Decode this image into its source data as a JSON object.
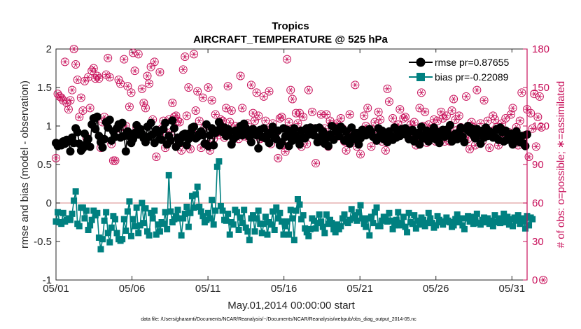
{
  "chart_data": {
    "type": "line",
    "title": "Tropics",
    "subtitle": "AIRCRAFT_TEMPERATURE @ 525 hPa",
    "xlabel": "May.01,2014 00:00:00 start",
    "ylabel_left": "rmse and bias (model - observation)",
    "ylabel_right": "# of obs: o=possible; ∗=assimilated",
    "x_ticks": [
      "05/01",
      "05/06",
      "05/11",
      "05/16",
      "05/21",
      "05/26",
      "05/31"
    ],
    "y_left_ticks": [
      "-1",
      "-0.5",
      "0",
      "0.5",
      "1",
      "1.5",
      "2"
    ],
    "y_right_ticks": [
      "0",
      "30",
      "60",
      "90",
      "120",
      "150",
      "180"
    ],
    "ylim_left": [
      -1,
      2
    ],
    "ylim_right": [
      0,
      180
    ],
    "xlim_days": [
      0,
      31
    ],
    "legend_position": "top-right",
    "footer": "data file: /Users/gharamti/Documents/NCAR/Reanalysis/~/Documents/NCAR/Reanalysis/webpub/obs_diag_output_2014-05.nc",
    "colors": {
      "rmse": "#000000",
      "bias": "#008080",
      "obs": "#c8105a",
      "zero_line": "#e0a0a0"
    },
    "series": [
      {
        "name": "rmse pr=0.87655",
        "axis": "left",
        "values": [
          0.78,
          0.74,
          0.77,
          0.75,
          0.8,
          0.77,
          0.82,
          0.8,
          0.67,
          0.85,
          0.78,
          0.97,
          0.92,
          0.77,
          0.68,
          0.71,
          0.9,
          0.76,
          0.83,
          0.73,
          1.02,
          1.1,
          0.96,
          1.12,
          0.87,
          0.79,
          0.72,
          0.83,
          1.05,
          0.98,
          1.08,
          0.81,
          0.93,
          0.86,
          0.97,
          1.02,
          0.85,
          1.04,
          0.87,
          0.67,
          0.93,
          0.87,
          0.78,
          0.83,
          0.91,
          1.01,
          0.89,
          0.96,
          0.9,
          0.84,
          0.79,
          0.99,
          0.86,
          1.04,
          0.89,
          0.78,
          0.95,
          0.91,
          0.83,
          0.82,
          0.96,
          1.04,
          0.76,
          0.87,
          0.81,
          1.07,
          0.97,
          0.73,
          0.85,
          0.78,
          0.84,
          0.89,
          0.9,
          0.75,
          0.83,
          0.91,
          0.98,
          0.99,
          0.84,
          0.86,
          0.9,
          0.93,
          0.88,
          0.77,
          1.02,
          0.74,
          0.88,
          0.97,
          0.75,
          0.91,
          0.94,
          1.05,
          1.0,
          0.92,
          0.98,
          0.87,
          0.96,
          0.92,
          0.76,
          0.83,
          0.94,
          0.87,
          0.93,
          1.0,
          0.88,
          1.03,
          0.97,
          0.92,
          0.86,
          0.79,
          0.96,
          0.93,
          0.88,
          0.71,
          0.95,
          0.86,
          0.97,
          0.84,
          0.88,
          0.78,
          0.92,
          0.99,
          0.85,
          0.83,
          0.94,
          0.75,
          0.79,
          0.97,
          0.86,
          0.95,
          0.74,
          0.89,
          0.81,
          0.97,
          0.88,
          0.83,
          0.76,
          0.94,
          0.85,
          0.84,
          0.97,
          0.89,
          0.98,
          0.92,
          0.88,
          0.97,
          0.79,
          0.98,
          0.86,
          0.93,
          0.77,
          0.85,
          0.74,
          0.89,
          1.0,
          0.82,
          0.97,
          0.93,
          0.87,
          0.99,
          0.96,
          0.81,
          0.93,
          0.85,
          0.77,
          0.98,
          0.87,
          0.83,
          0.91,
          0.76,
          0.84,
          0.95,
          0.92,
          0.88,
          0.9,
          0.96,
          0.92,
          0.86,
          0.85,
          0.81,
          0.97,
          0.89,
          0.94,
          0.83,
          0.91,
          0.79,
          0.93,
          0.87,
          0.82,
          0.98,
          0.85,
          0.92,
          0.87,
          0.96,
          0.9,
          0.97,
          0.88,
          0.83,
          0.93,
          0.95,
          0.8,
          0.87,
          0.91,
          0.76,
          0.99,
          0.84,
          0.89,
          0.94,
          0.8,
          0.86,
          0.92,
          0.98,
          0.83,
          0.92,
          0.78,
          0.88,
          0.95,
          0.86,
          0.95,
          0.88,
          1.01,
          0.8,
          0.87,
          0.9,
          0.83,
          0.92,
          0.98,
          0.86,
          0.79,
          0.96,
          1.0,
          0.92,
          0.97,
          0.88,
          0.84,
          0.96,
          0.91,
          0.77,
          0.94,
          0.85,
          0.98,
          0.87,
          0.93,
          0.9,
          0.85,
          0.86,
          0.96,
          0.82,
          0.98,
          0.92,
          0.8,
          0.94,
          0.82,
          0.87,
          0.9,
          0.76,
          0.85,
          0.93,
          0.81,
          0.79,
          0.87,
          0.77,
          0.74,
          0.89
        ]
      },
      {
        "name": "bias pr=-0.22089",
        "axis": "left",
        "values": [
          -0.24,
          -0.12,
          -0.25,
          -0.27,
          -0.13,
          -0.24,
          -0.22,
          -0.2,
          -0.22,
          -0.14,
          0.03,
          0.15,
          -0.27,
          -0.3,
          -0.06,
          -0.06,
          -0.2,
          -0.1,
          -0.35,
          -0.29,
          -0.22,
          -0.1,
          -0.16,
          -0.13,
          -0.45,
          -0.6,
          -0.47,
          -0.23,
          -0.12,
          -0.39,
          -0.51,
          -0.32,
          -0.17,
          -0.21,
          -0.39,
          -0.47,
          -0.49,
          -0.47,
          -0.21,
          -0.36,
          -0.11,
          0.02,
          -0.43,
          -0.21,
          -0.3,
          -0.06,
          -0.39,
          -0.29,
          0.0,
          -0.26,
          -0.07,
          -0.37,
          -0.42,
          -0.13,
          -0.2,
          -0.1,
          -0.41,
          -0.28,
          -0.37,
          -0.25,
          -0.27,
          -0.12,
          -0.34,
          0.36,
          -0.11,
          -0.25,
          -0.21,
          -0.17,
          -0.09,
          -0.2,
          -0.42,
          -0.2,
          -0.14,
          -0.05,
          -0.31,
          -0.13,
          0.09,
          -0.06,
          0.11,
          0.21,
          -0.05,
          -0.11,
          -0.17,
          -0.25,
          -0.22,
          -0.13,
          -0.2,
          0.04,
          -0.28,
          -0.1,
          0.47,
          0.54,
          -0.04,
          -0.1,
          -0.22,
          -0.23,
          -0.14,
          -0.41,
          -0.25,
          -0.28,
          -0.09,
          -0.12,
          -0.35,
          -0.19,
          -0.26,
          -0.09,
          -0.32,
          -0.37,
          -0.48,
          -0.2,
          -0.16,
          -0.37,
          -0.2,
          -0.1,
          -0.27,
          -0.39,
          -0.27,
          -0.18,
          -0.41,
          -0.25,
          -0.28,
          -0.11,
          -0.35,
          -0.06,
          -0.2,
          -0.13,
          -0.24,
          -0.41,
          -0.3,
          -0.24,
          -0.41,
          -0.09,
          -0.2,
          -0.48,
          -0.1,
          0.05,
          -0.02,
          -0.21,
          -0.16,
          -0.33,
          -0.38,
          -0.43,
          -0.34,
          -0.2,
          -0.23,
          -0.33,
          -0.26,
          -0.15,
          -0.24,
          -0.31,
          -0.39,
          -0.15,
          -0.27,
          -0.22,
          -0.26,
          -0.34,
          -0.38,
          -0.28,
          -0.34,
          -0.3,
          -0.2,
          -0.15,
          -0.24,
          -0.26,
          -0.22,
          -0.08,
          -0.2,
          -0.16,
          -0.23,
          -0.12,
          -0.03,
          -0.2,
          -0.27,
          -0.31,
          -0.2,
          -0.42,
          -0.18,
          -0.26,
          -0.12,
          -0.06,
          -0.3,
          -0.3,
          -0.23,
          -0.18,
          -0.21,
          -0.24,
          -0.13,
          -0.23,
          -0.34,
          -0.29,
          -0.22,
          -0.12,
          -0.29,
          -0.26,
          -0.18,
          -0.31,
          -0.38,
          -0.13,
          -0.25,
          -0.27,
          -0.16,
          -0.33,
          -0.23,
          -0.28,
          -0.19,
          -0.22,
          -0.3,
          -0.26,
          -0.13,
          -0.2,
          -0.26,
          -0.32,
          -0.29,
          -0.17,
          -0.22,
          -0.25,
          -0.28,
          -0.24,
          -0.19,
          -0.23,
          -0.25,
          -0.31,
          -0.29,
          -0.21,
          -0.15,
          -0.25,
          -0.2,
          -0.29,
          -0.34,
          -0.2,
          -0.17,
          -0.24,
          -0.18,
          -0.27,
          -0.22,
          -0.14,
          -0.26,
          -0.28,
          -0.22,
          -0.19,
          -0.25,
          -0.2,
          -0.27,
          -0.23,
          -0.3,
          -0.16,
          -0.25,
          -0.2,
          -0.26,
          -0.21,
          -0.14,
          -0.25,
          -0.18,
          -0.28,
          -0.21,
          -0.3,
          -0.19,
          -0.23,
          -0.16,
          -0.27,
          -0.2,
          -0.24,
          -0.33,
          -0.17,
          -0.29,
          -0.19,
          -0.21
        ]
      },
      {
        "name": "possible",
        "axis": "right",
        "marker": "o",
        "values": [
          95,
          145,
          143,
          142,
          140,
          170,
          138,
          133,
          140,
          148,
          180,
          168,
          156,
          127,
          142,
          132,
          155,
          111,
          158,
          134,
          163,
          165,
          157,
          159,
          157,
          103,
          123,
          127,
          160,
          173,
          158,
          106,
          93,
          93,
          118,
          156,
          153,
          117,
          172,
          120,
          151,
          135,
          146,
          177,
          163,
          119,
          176,
          116,
          149,
          138,
          134,
          159,
          153,
          166,
          125,
          170,
          96,
          115,
          162,
          118,
          124,
          103,
          113,
          125,
          115,
          138,
          127,
          128,
          124,
          123,
          101,
          164,
          174,
          128,
          150,
          102,
          115,
          176,
          132,
          147,
          124,
          103,
          142,
          119,
          106,
          150,
          101,
          140,
          110,
          129,
          115,
          113,
          125,
          124,
          111,
          134,
          151,
          123,
          132,
          115,
          120,
          114,
          110,
          159,
          134,
          112,
          115,
          122,
          110,
          152,
          130,
          124,
          146,
          128,
          110,
          111,
          143,
          124,
          117,
          147,
          106,
          122,
          111,
          115,
          95,
          126,
          127,
          105,
          100,
          172,
          123,
          148,
          141,
          112,
          130,
          122,
          130,
          104,
          127,
          111,
          106,
          148,
          114,
          131,
          118,
          91,
          113,
          108,
          129,
          116,
          118,
          129,
          104,
          124,
          121,
          111,
          113,
          122,
          112,
          126,
          118,
          108,
          101,
          108,
          129,
          117,
          115,
          152,
          104,
          112,
          98,
          113,
          128,
          120,
          134,
          117,
          104,
          117,
          123,
          110,
          131,
          125,
          108,
          113,
          101,
          149,
          139,
          110,
          126,
          119,
          112,
          121,
          133,
          114,
          126,
          127,
          117,
          110,
          121,
          115,
          123,
          105,
          109,
          134,
          146,
          120,
          131,
          107,
          121,
          113,
          118,
          125,
          108,
          124,
          116,
          131,
          126,
          108,
          128,
          117,
          108,
          132,
          141,
          125,
          117,
          128,
          119,
          118,
          112,
          143,
          110,
          102,
          123,
          119,
          105,
          148,
          113,
          122,
          108,
          140,
          117,
          124,
          103,
          116,
          128,
          125,
          119,
          105,
          109,
          122,
          116,
          126,
          113,
          115,
          129,
          134,
          110,
          119,
          105,
          124,
          146,
          111,
          113,
          133,
          96,
          130,
          118,
          145,
          104,
          127,
          143,
          119,
          0
        ]
      }
    ]
  }
}
